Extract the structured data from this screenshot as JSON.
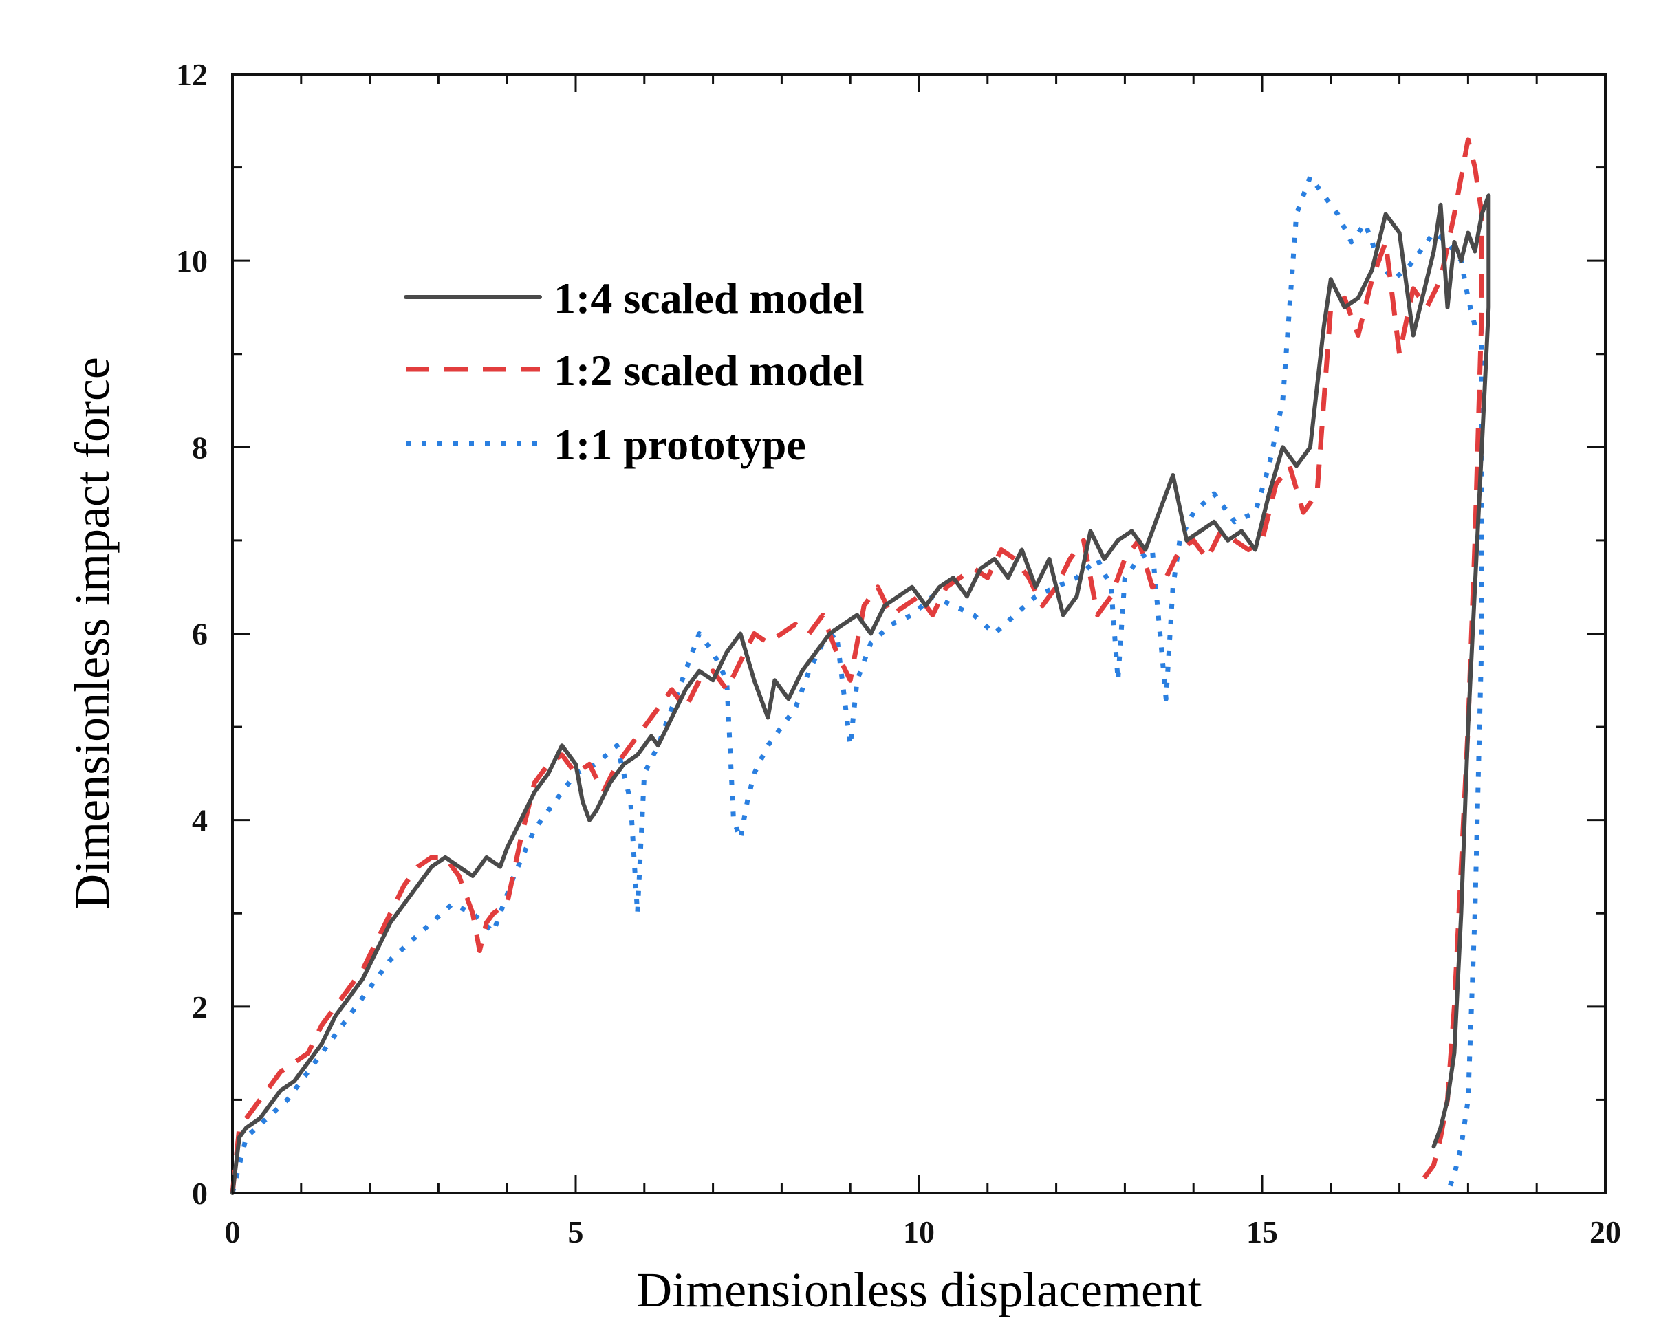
{
  "chart_data": {
    "type": "line",
    "title": "",
    "xlabel": "Dimensionless displacement",
    "ylabel": "Dimensionless impact force",
    "xlim": [
      0,
      20
    ],
    "ylim": [
      0,
      12
    ],
    "xticks": [
      0,
      5,
      10,
      15,
      20
    ],
    "yticks": [
      0,
      2,
      4,
      6,
      8,
      10,
      12
    ],
    "xtick_labels": [
      "0",
      "5",
      "10",
      "15",
      "20"
    ],
    "ytick_labels": [
      "0",
      "2",
      "4",
      "6",
      "8",
      "10",
      "12"
    ],
    "grid": false,
    "legend_position": "upper-left",
    "series": [
      {
        "name": "1:4 scaled model",
        "color": "#4a4a4a",
        "style": "solid",
        "x": [
          0,
          0.1,
          0.2,
          0.4,
          0.6,
          0.7,
          0.9,
          1.1,
          1.3,
          1.5,
          1.7,
          1.9,
          2.1,
          2.3,
          2.5,
          2.7,
          2.9,
          3.1,
          3.3,
          3.5,
          3.7,
          3.9,
          4.0,
          4.2,
          4.4,
          4.6,
          4.8,
          5.0,
          5.1,
          5.2,
          5.3,
          5.5,
          5.7,
          5.9,
          6.1,
          6.2,
          6.4,
          6.6,
          6.8,
          7.0,
          7.2,
          7.4,
          7.6,
          7.8,
          7.9,
          8.1,
          8.3,
          8.5,
          8.7,
          8.9,
          9.1,
          9.3,
          9.5,
          9.7,
          9.9,
          10.1,
          10.3,
          10.5,
          10.7,
          10.9,
          11.1,
          11.3,
          11.5,
          11.7,
          11.9,
          12.1,
          12.3,
          12.5,
          12.7,
          12.9,
          13.1,
          13.3,
          13.5,
          13.7,
          13.9,
          14.1,
          14.3,
          14.5,
          14.7,
          14.9,
          15.1,
          15.3,
          15.5,
          15.7,
          15.9,
          16.0,
          16.2,
          16.4,
          16.6,
          16.8,
          17.0,
          17.2,
          17.4,
          17.5,
          17.6,
          17.7,
          17.8,
          17.9,
          18.0,
          18.1,
          18.2,
          18.3,
          18.3,
          18.2,
          18.0,
          17.9,
          17.8,
          17.7,
          17.6,
          17.5
        ],
        "y": [
          0,
          0.6,
          0.7,
          0.8,
          1.0,
          1.1,
          1.2,
          1.4,
          1.6,
          1.9,
          2.1,
          2.3,
          2.6,
          2.9,
          3.1,
          3.3,
          3.5,
          3.6,
          3.5,
          3.4,
          3.6,
          3.5,
          3.7,
          4.0,
          4.3,
          4.5,
          4.8,
          4.6,
          4.2,
          4.0,
          4.1,
          4.4,
          4.6,
          4.7,
          4.9,
          4.8,
          5.1,
          5.4,
          5.6,
          5.5,
          5.8,
          6.0,
          5.5,
          5.1,
          5.5,
          5.3,
          5.6,
          5.8,
          6.0,
          6.1,
          6.2,
          6.0,
          6.3,
          6.4,
          6.5,
          6.3,
          6.5,
          6.6,
          6.4,
          6.7,
          6.8,
          6.6,
          6.9,
          6.5,
          6.8,
          6.2,
          6.4,
          7.1,
          6.8,
          7.0,
          7.1,
          6.9,
          7.3,
          7.7,
          7.0,
          7.1,
          7.2,
          7.0,
          7.1,
          6.9,
          7.5,
          8.0,
          7.8,
          8.0,
          9.3,
          9.8,
          9.5,
          9.6,
          9.9,
          10.5,
          10.3,
          9.2,
          9.8,
          10.1,
          10.6,
          9.5,
          10.2,
          10.0,
          10.3,
          10.1,
          10.5,
          10.7,
          9.5,
          8.0,
          5.0,
          3.0,
          1.5,
          1.0,
          0.7,
          0.5
        ]
      },
      {
        "name": "1:2 scaled model",
        "color": "#e23d3d",
        "style": "dashed",
        "x": [
          0,
          0.1,
          0.3,
          0.5,
          0.7,
          0.9,
          1.1,
          1.3,
          1.5,
          1.7,
          1.9,
          2.1,
          2.3,
          2.5,
          2.7,
          2.9,
          3.1,
          3.3,
          3.5,
          3.6,
          3.7,
          3.8,
          4.0,
          4.2,
          4.4,
          4.6,
          4.8,
          5.0,
          5.2,
          5.4,
          5.6,
          5.8,
          6.0,
          6.2,
          6.4,
          6.6,
          6.8,
          7.0,
          7.2,
          7.4,
          7.6,
          7.8,
          8.0,
          8.2,
          8.4,
          8.6,
          8.8,
          9.0,
          9.2,
          9.4,
          9.6,
          9.8,
          10.0,
          10.2,
          10.4,
          10.6,
          10.8,
          11.0,
          11.2,
          11.4,
          11.6,
          11.8,
          12.0,
          12.2,
          12.4,
          12.6,
          12.8,
          13.0,
          13.2,
          13.4,
          13.6,
          13.8,
          14.0,
          14.2,
          14.4,
          14.6,
          14.8,
          15.0,
          15.2,
          15.4,
          15.6,
          15.8,
          16.0,
          16.2,
          16.4,
          16.6,
          16.8,
          17.0,
          17.2,
          17.4,
          17.6,
          17.8,
          18.0,
          18.1,
          18.2,
          18.2,
          18.1,
          18.0,
          17.9,
          17.8,
          17.7,
          17.6,
          17.5,
          17.3
        ],
        "y": [
          0,
          0.7,
          0.9,
          1.1,
          1.3,
          1.4,
          1.5,
          1.8,
          2.0,
          2.2,
          2.4,
          2.7,
          3.0,
          3.3,
          3.5,
          3.6,
          3.6,
          3.4,
          3.0,
          2.6,
          2.9,
          3.0,
          3.1,
          3.8,
          4.4,
          4.6,
          4.7,
          4.5,
          4.6,
          4.3,
          4.6,
          4.8,
          5.0,
          5.2,
          5.4,
          5.2,
          5.5,
          5.6,
          5.4,
          5.7,
          6.0,
          5.9,
          6.0,
          6.1,
          6.0,
          6.2,
          5.8,
          5.5,
          6.3,
          6.5,
          6.2,
          6.3,
          6.4,
          6.2,
          6.5,
          6.6,
          6.7,
          6.6,
          6.9,
          6.8,
          6.6,
          6.3,
          6.5,
          6.8,
          7.0,
          6.2,
          6.4,
          6.8,
          7.0,
          6.5,
          6.6,
          6.9,
          7.0,
          6.8,
          7.1,
          7.0,
          6.9,
          7.0,
          7.6,
          7.8,
          7.3,
          7.5,
          9.5,
          9.6,
          9.2,
          9.8,
          10.2,
          9.0,
          9.7,
          9.5,
          9.8,
          10.5,
          11.3,
          11.0,
          10.5,
          9.5,
          7.0,
          5.0,
          3.5,
          2.0,
          1.0,
          0.6,
          0.3,
          0.1
        ]
      },
      {
        "name": "1:1 prototype",
        "color": "#2a7fe0",
        "style": "dotted",
        "x": [
          0,
          0.2,
          0.5,
          0.8,
          1.1,
          1.4,
          1.7,
          2.0,
          2.3,
          2.6,
          2.9,
          3.2,
          3.5,
          3.8,
          4.1,
          4.4,
          4.7,
          5.0,
          5.3,
          5.6,
          5.8,
          5.9,
          6.0,
          6.2,
          6.4,
          6.6,
          6.8,
          7.0,
          7.2,
          7.3,
          7.4,
          7.5,
          7.6,
          7.8,
          8.0,
          8.2,
          8.4,
          8.6,
          8.8,
          9.0,
          9.1,
          9.3,
          9.6,
          9.9,
          10.2,
          10.5,
          10.8,
          11.1,
          11.4,
          11.7,
          12.0,
          12.3,
          12.6,
          12.8,
          12.9,
          13.0,
          13.2,
          13.4,
          13.6,
          13.7,
          13.8,
          14.0,
          14.3,
          14.6,
          14.9,
          15.1,
          15.3,
          15.5,
          15.7,
          15.9,
          16.1,
          16.3,
          16.5,
          16.7,
          16.9,
          17.1,
          17.3,
          17.5,
          17.7,
          17.9,
          18.0,
          18.1,
          18.2,
          18.2,
          18.1,
          18.0,
          17.9,
          17.8,
          17.7
        ],
        "y": [
          0,
          0.6,
          0.8,
          1.0,
          1.3,
          1.6,
          1.9,
          2.2,
          2.5,
          2.7,
          2.9,
          3.1,
          3.0,
          2.8,
          3.4,
          3.9,
          4.2,
          4.5,
          4.6,
          4.8,
          4.2,
          3.0,
          4.5,
          4.8,
          5.2,
          5.6,
          6.0,
          5.8,
          5.5,
          4.0,
          3.8,
          4.2,
          4.5,
          4.8,
          5.0,
          5.2,
          5.6,
          5.9,
          6.0,
          4.8,
          5.5,
          5.9,
          6.1,
          6.2,
          6.4,
          6.3,
          6.2,
          6.0,
          6.2,
          6.4,
          6.5,
          6.6,
          6.8,
          6.5,
          5.5,
          6.6,
          6.8,
          6.9,
          5.3,
          6.5,
          7.0,
          7.3,
          7.5,
          7.2,
          7.3,
          7.8,
          8.5,
          10.5,
          10.9,
          10.7,
          10.5,
          10.2,
          10.4,
          10.0,
          9.8,
          9.9,
          10.1,
          10.3,
          10.2,
          10.0,
          9.6,
          9.3,
          9.3,
          6.0,
          3.0,
          1.0,
          0.5,
          0.2,
          0.0
        ]
      }
    ]
  }
}
